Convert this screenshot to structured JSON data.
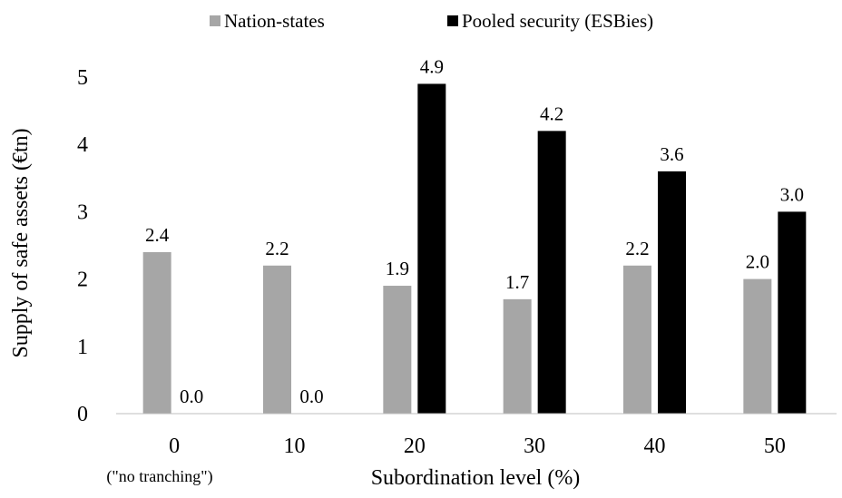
{
  "chart_data": {
    "type": "bar",
    "categories": [
      "0",
      "10",
      "20",
      "30",
      "40",
      "50"
    ],
    "category_note": "(\"no tranching\")",
    "series": [
      {
        "name": "Nation-states",
        "values": [
          2.4,
          2.2,
          1.9,
          1.7,
          2.2,
          2.0
        ],
        "color": "#a6a6a6"
      },
      {
        "name": "Pooled security (ESBies)",
        "values": [
          0.0,
          0.0,
          4.9,
          4.2,
          3.6,
          3.0
        ],
        "color": "#000000"
      }
    ],
    "xlabel": "Subordination level (%)",
    "ylabel": "Supply of safe assets (€tn)",
    "ylim": [
      0,
      5
    ],
    "yticks": [
      "0",
      "1",
      "2",
      "3",
      "4",
      "5"
    ],
    "grid": false,
    "legend": "top"
  }
}
